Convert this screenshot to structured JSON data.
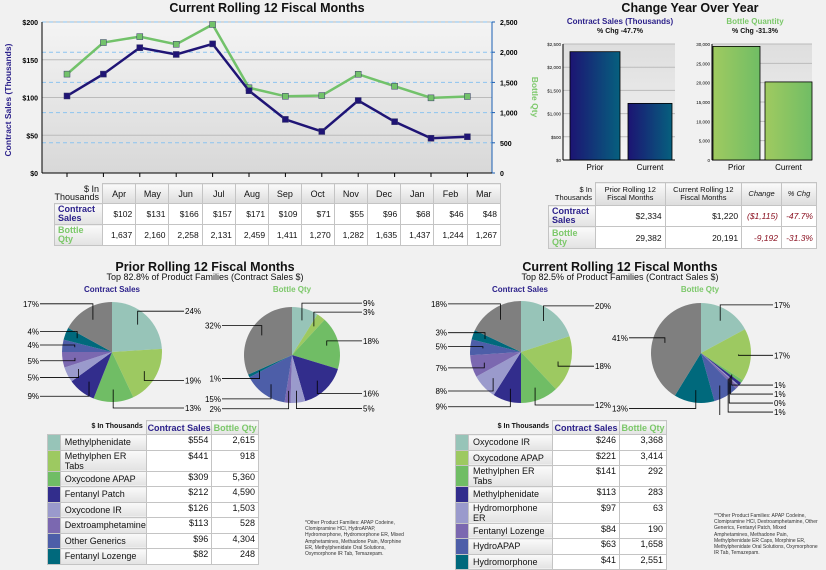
{
  "line_section": {
    "title": "Current Rolling 12 Fiscal Months",
    "y_left_label": "Contract Sales (Thousands)",
    "y_right_label": "Bottle Qty",
    "table": {
      "corner": "$ In Thousands",
      "months": [
        "Apr",
        "May",
        "Jun",
        "Jul",
        "Aug",
        "Sep",
        "Oct",
        "Nov",
        "Dec",
        "Jan",
        "Feb",
        "Mar"
      ],
      "rows": [
        {
          "label": "Contract Sales",
          "values": [
            "$102",
            "$131",
            "$166",
            "$157",
            "$171",
            "$109",
            "$71",
            "$55",
            "$96",
            "$68",
            "$46",
            "$48"
          ]
        },
        {
          "label": "Bottle Qty",
          "values": [
            "1,637",
            "2,160",
            "2,258",
            "2,131",
            "2,459",
            "1,411",
            "1,270",
            "1,282",
            "1,635",
            "1,437",
            "1,244",
            "1,267"
          ]
        }
      ]
    }
  },
  "yoy_section": {
    "title": "Change Year Over Year",
    "contract_title": "Contract Sales (Thousands)",
    "contract_pct": "% Chg -47.7%",
    "bottle_title": "Bottle Quantity",
    "bottle_pct": "% Chg -31.3%",
    "table": {
      "corner": "$ In Thousands",
      "headers": [
        "Prior Rolling 12 Fiscal Months",
        "Current Rolling 12 Fiscal Months",
        "Change",
        "% Chg"
      ],
      "rows": [
        {
          "label": "Contract Sales",
          "prior": "$2,334",
          "current": "$1,220",
          "change": "($1,115)",
          "pct": "-47.7%"
        },
        {
          "label": "Bottle Qty",
          "prior": "29,382",
          "current": "20,191",
          "change": "-9,192",
          "pct": "-31.3%"
        }
      ]
    }
  },
  "prior_section": {
    "title": "Prior Rolling 12 Fiscal Months",
    "subtitle": "Top 82.8% of Product Families (Contract Sales $)",
    "contract_label": "Contract Sales",
    "bottle_label": "Bottle Qty",
    "table": {
      "corner": "$ In Thousands",
      "col1": "Contract Sales",
      "col2": "Bottle Qty",
      "rows": [
        {
          "name": "Methylphenidate",
          "sales": "$554",
          "qty": "2,615"
        },
        {
          "name": "Methylphen ER Tabs",
          "sales": "$441",
          "qty": "918"
        },
        {
          "name": "Oxycodone APAP",
          "sales": "$309",
          "qty": "5,360"
        },
        {
          "name": "Fentanyl Patch",
          "sales": "$212",
          "qty": "4,590"
        },
        {
          "name": "Oxycodone IR",
          "sales": "$126",
          "qty": "1,503"
        },
        {
          "name": "Dextroamphetamine",
          "sales": "$113",
          "qty": "528"
        },
        {
          "name": "Other Generics",
          "sales": "$96",
          "qty": "4,304"
        },
        {
          "name": "Fentanyl Lozenge",
          "sales": "$82",
          "qty": "248"
        }
      ]
    },
    "footnote": "*Other Product Families: APAP Codeine, Clomipramine HCl, HydroAPAP, Hydromorphone, Hydromorphone ER, Mixed Amphetamines, Methadone Pain, Morphine ER, Methylphenidate Oral Solutions, Oxymorphone IR Tab, Temazepam."
  },
  "current_section": {
    "title": "Current Rolling 12 Fiscal Months",
    "subtitle": "Top 82.5% of Product Families (Contract Sales $)",
    "contract_label": "Contract Sales",
    "bottle_label": "Bottle Qty",
    "table": {
      "corner": "$ In Thousands",
      "col1": "Contract Sales",
      "col2": "Bottle Qty",
      "rows": [
        {
          "name": "Oxycodone IR",
          "sales": "$246",
          "qty": "3,368"
        },
        {
          "name": "Oxycodone APAP",
          "sales": "$221",
          "qty": "3,414"
        },
        {
          "name": "Methylphen ER Tabs",
          "sales": "$141",
          "qty": "292"
        },
        {
          "name": "Methylphenidate",
          "sales": "$113",
          "qty": "283"
        },
        {
          "name": "Hydromorphone ER",
          "sales": "$97",
          "qty": "63"
        },
        {
          "name": "Fentanyl Lozenge",
          "sales": "$84",
          "qty": "190"
        },
        {
          "name": "HydroAPAP",
          "sales": "$63",
          "qty": "1,658"
        },
        {
          "name": "Hydromorphone",
          "sales": "$41",
          "qty": "2,551"
        }
      ]
    },
    "footnote": "**Other Product Families: APAP Codeine, Clomipramine HCl, Dextroamphetamine, Other Generics, Fentanyl Patch, Mixed Amphetamines, Methadone Pain, Methylphenidate ER Caps, Morphine ER, Methylphenidate Oral Solutions, Oxymorphone IR Tab, Temazepam."
  },
  "colors": {
    "navy": "#1f1475",
    "green": "#72c26a",
    "slices": [
      "#97c4b8",
      "#9dc961",
      "#70bd65",
      "#322d8c",
      "#9a9acc",
      "#7b68b0",
      "#4d5ea8",
      "#00697c",
      "#7f7f7f"
    ]
  },
  "chart_data": [
    {
      "type": "line",
      "title": "Current Rolling 12 Fiscal Months",
      "categories": [
        "Apr",
        "May",
        "Jun",
        "Jul",
        "Aug",
        "Sep",
        "Oct",
        "Nov",
        "Dec",
        "Jan",
        "Feb",
        "Mar"
      ],
      "ylabel": "Contract Sales (Thousands)",
      "y2label": "Bottle Qty",
      "ylim": [
        0,
        200
      ],
      "y2lim": [
        0,
        2500
      ],
      "yticks": [
        "$0",
        "$50",
        "$100",
        "$150",
        "$200"
      ],
      "y2ticks": [
        "0",
        "500",
        "1,000",
        "1,500",
        "2,000",
        "2,500"
      ],
      "series": [
        {
          "name": "Contract Sales",
          "axis": "left",
          "color": "#1f1475",
          "values": [
            102,
            131,
            166,
            157,
            171,
            109,
            71,
            55,
            96,
            68,
            46,
            48
          ]
        },
        {
          "name": "Bottle Qty",
          "axis": "right",
          "color": "#72c26a",
          "values": [
            1637,
            2160,
            2258,
            2131,
            2459,
            1411,
            1270,
            1282,
            1635,
            1437,
            1244,
            1267
          ]
        }
      ],
      "grid": true
    },
    {
      "type": "bar",
      "title": "Contract Sales (Thousands)",
      "categories": [
        "Prior",
        "Current"
      ],
      "values": [
        2334,
        1220
      ],
      "ylim": [
        0,
        2500
      ],
      "yticks": [
        "$0",
        "$500",
        "$1,000",
        "$1,500",
        "$2,000",
        "$2,500"
      ]
    },
    {
      "type": "bar",
      "title": "Bottle Quantity",
      "categories": [
        "Prior",
        "Current"
      ],
      "values": [
        29382,
        20191
      ],
      "ylim": [
        0,
        30000
      ],
      "yticks": [
        "0",
        "5,000",
        "10,000",
        "15,000",
        "20,000",
        "25,000",
        "30,000"
      ]
    },
    {
      "type": "pie",
      "title": "Contract Sales",
      "values": [
        24,
        19,
        13,
        9,
        5,
        5,
        4,
        4,
        17
      ],
      "labels": [
        "24%",
        "19%",
        "13%",
        "9%",
        "5%",
        "5%",
        "4%",
        "4%",
        "17%"
      ]
    },
    {
      "type": "pie",
      "title": "Bottle Qty",
      "values": [
        9,
        3,
        18,
        16,
        5,
        2,
        15,
        1,
        32
      ],
      "labels": [
        "9%",
        "3%",
        "18%",
        "16%",
        "5%",
        "2%",
        "15%",
        "1%",
        "32%"
      ]
    },
    {
      "type": "pie",
      "title": "Contract Sales",
      "values": [
        20,
        18,
        12,
        9,
        8,
        7,
        5,
        3,
        18
      ],
      "labels": [
        "20%",
        "18%",
        "12%",
        "9%",
        "8%",
        "7%",
        "5%",
        "3%",
        "18%"
      ]
    },
    {
      "type": "pie",
      "title": "Bottle Qty",
      "values": [
        17,
        17,
        1,
        1,
        0.4,
        1,
        8,
        13,
        41
      ],
      "labels": [
        "17%",
        "17%",
        "1%",
        "1%",
        "0%",
        "1%",
        "8%",
        "13%",
        "41%"
      ]
    }
  ]
}
